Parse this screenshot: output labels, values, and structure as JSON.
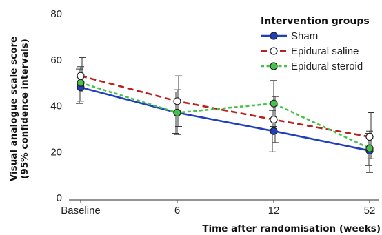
{
  "chart_data": {
    "type": "line",
    "categories": [
      "Baseline",
      "6",
      "12",
      "52"
    ],
    "ylabel_line1": "Visual analogue scale score",
    "ylabel_line2": "(95% confidence intervals)",
    "xlabel": "Time after randomisation (weeks)",
    "ylim": [
      0,
      80
    ],
    "yticks": [
      0,
      20,
      40,
      60,
      80
    ],
    "grid": false,
    "legend": {
      "title": "Intervention groups",
      "position": "top-right"
    },
    "series": [
      {
        "name": "Sham",
        "color": "#1f3fbf",
        "dash": "solid",
        "marker_fill": "#1f3fbf",
        "values": [
          48,
          37,
          29,
          20.5
        ],
        "ci": [
          [
            41,
            56
          ],
          [
            28,
            46
          ],
          [
            20,
            38
          ],
          [
            14,
            28
          ]
        ]
      },
      {
        "name": "Epidural saline",
        "color": "#b8221e",
        "dash": "dashed",
        "marker_fill": "#ffffff",
        "values": [
          53,
          42,
          34,
          26.5
        ],
        "ci": [
          [
            46,
            61
          ],
          [
            31,
            53
          ],
          [
            24,
            44
          ],
          [
            17,
            37
          ]
        ]
      },
      {
        "name": "Epidural steroid",
        "color": "#46c24a",
        "dash": "dotted",
        "marker_fill": "#46c24a",
        "values": [
          50,
          37,
          41,
          21.5
        ],
        "ci": [
          [
            42,
            57
          ],
          [
            27.5,
            47
          ],
          [
            31,
            51
          ],
          [
            11,
            29
          ]
        ]
      }
    ]
  }
}
